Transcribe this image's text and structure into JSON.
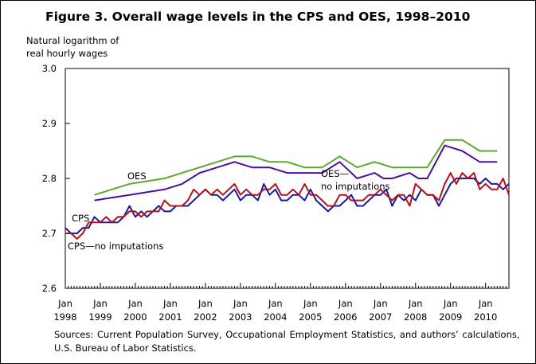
{
  "title": "Figure 3. Overall wage levels in the CPS and OES, 1998–2010",
  "ylabel_lines": [
    "Natural logarithm of",
    "real hourly wages"
  ],
  "source_lines": [
    "Sources: Current Population Survey, Occupational Employment Statistics, and authors’ calculations,",
    "U.S. Bureau of Labor Statistics."
  ],
  "colors": {
    "oes": "#5aaa2d",
    "oes_no_imputations": "#4b0fa0",
    "cps": "#1a1a9a",
    "cps_no_imputations": "#b3121c"
  },
  "chart_data": {
    "type": "line",
    "title": "Figure 3. Overall wage levels in the CPS and OES, 1998–2010",
    "ylabel": "Natural logarithm of real hourly wages",
    "xlabel": "",
    "ylim": [
      2.6,
      3.0
    ],
    "yticks": [
      {
        "value": 2.6,
        "label": "2.6"
      },
      {
        "value": 2.7,
        "label": "2.7"
      },
      {
        "value": 2.8,
        "label": "2.8"
      },
      {
        "value": 2.9,
        "label": "2.9"
      },
      {
        "value": 3.0,
        "label": "3.0"
      }
    ],
    "xlim": [
      "1998-01",
      "2010-09"
    ],
    "xticks": [
      {
        "t": "1998-01",
        "month": "Jan",
        "year": "1998"
      },
      {
        "t": "1999-01",
        "month": "Jan",
        "year": "1999"
      },
      {
        "t": "2000-01",
        "month": "Jan",
        "year": "2000"
      },
      {
        "t": "2001-01",
        "month": "Jan",
        "year": "2001"
      },
      {
        "t": "2002-01",
        "month": "Jan",
        "year": "2002"
      },
      {
        "t": "2003-01",
        "month": "Jan",
        "year": "2003"
      },
      {
        "t": "2004-01",
        "month": "Jan",
        "year": "2004"
      },
      {
        "t": "2005-01",
        "month": "Jan",
        "year": "2005"
      },
      {
        "t": "2006-01",
        "month": "Jan",
        "year": "2006"
      },
      {
        "t": "2007-01",
        "month": "Jan",
        "year": "2007"
      },
      {
        "t": "2008-01",
        "month": "Jan",
        "year": "2008"
      },
      {
        "t": "2009-01",
        "month": "Jan",
        "year": "2009"
      },
      {
        "t": "2010-01",
        "month": "Jan",
        "year": "2010"
      }
    ],
    "grid": false,
    "series": [
      {
        "name": "OES",
        "x": [
          "1998-11",
          "1999-05",
          "1999-11",
          "2000-05",
          "2000-11",
          "2001-05",
          "2001-11",
          "2002-05",
          "2002-11",
          "2003-05",
          "2003-11",
          "2004-05",
          "2004-11",
          "2005-05",
          "2005-11",
          "2006-05",
          "2006-11",
          "2007-05",
          "2007-11",
          "2008-05",
          "2008-11",
          "2009-05",
          "2009-11",
          "2010-05"
        ],
        "y": [
          2.77,
          2.78,
          2.79,
          2.795,
          2.8,
          2.81,
          2.82,
          2.83,
          2.84,
          2.84,
          2.83,
          2.83,
          2.82,
          2.82,
          2.84,
          2.82,
          2.83,
          2.82,
          2.82,
          2.82,
          2.87,
          2.87,
          2.85,
          2.85
        ]
      },
      {
        "name": "OES—no imputations",
        "x": [
          "1998-11",
          "1999-05",
          "1999-11",
          "2000-05",
          "2000-11",
          "2001-05",
          "2001-11",
          "2002-05",
          "2002-11",
          "2003-05",
          "2003-08",
          "2003-11",
          "2004-05",
          "2004-11",
          "2005-05",
          "2005-11",
          "2006-02",
          "2006-05",
          "2006-11",
          "2007-02",
          "2007-05",
          "2007-11",
          "2008-02",
          "2008-05",
          "2008-11",
          "2009-02",
          "2009-05",
          "2009-11",
          "2010-05"
        ],
        "y": [
          2.76,
          2.765,
          2.77,
          2.775,
          2.78,
          2.79,
          2.81,
          2.82,
          2.83,
          2.82,
          2.82,
          2.82,
          2.81,
          2.81,
          2.81,
          2.83,
          2.815,
          2.8,
          2.81,
          2.8,
          2.8,
          2.81,
          2.8,
          2.8,
          2.86,
          2.855,
          2.85,
          2.83,
          2.83
        ]
      },
      {
        "name": "CPS",
        "x": [
          "1998-01",
          "1998-03",
          "1998-05",
          "1998-07",
          "1998-09",
          "1998-11",
          "1999-01",
          "1999-03",
          "1999-05",
          "1999-07",
          "1999-09",
          "1999-11",
          "2000-01",
          "2000-03",
          "2000-05",
          "2000-07",
          "2000-09",
          "2000-11",
          "2001-01",
          "2001-03",
          "2001-05",
          "2001-07",
          "2001-09",
          "2001-11",
          "2002-01",
          "2002-03",
          "2002-05",
          "2002-07",
          "2002-09",
          "2002-11",
          "2003-01",
          "2003-03",
          "2003-05",
          "2003-07",
          "2003-09",
          "2003-11",
          "2004-01",
          "2004-03",
          "2004-05",
          "2004-07",
          "2004-09",
          "2004-11",
          "2005-01",
          "2005-03",
          "2005-05",
          "2005-07",
          "2005-09",
          "2005-11",
          "2006-01",
          "2006-03",
          "2006-05",
          "2006-07",
          "2006-09",
          "2006-11",
          "2007-01",
          "2007-03",
          "2007-05",
          "2007-07",
          "2007-09",
          "2007-11",
          "2008-01",
          "2008-03",
          "2008-05",
          "2008-07",
          "2008-09",
          "2008-11",
          "2009-01",
          "2009-03",
          "2009-05",
          "2009-07",
          "2009-09",
          "2009-11",
          "2010-01",
          "2010-03",
          "2010-05",
          "2010-07",
          "2010-09"
        ],
        "y": [
          2.71,
          2.7,
          2.7,
          2.71,
          2.71,
          2.73,
          2.72,
          2.72,
          2.72,
          2.72,
          2.73,
          2.75,
          2.73,
          2.74,
          2.73,
          2.74,
          2.75,
          2.74,
          2.74,
          2.75,
          2.75,
          2.75,
          2.76,
          2.77,
          2.78,
          2.77,
          2.77,
          2.76,
          2.77,
          2.78,
          2.76,
          2.77,
          2.77,
          2.76,
          2.79,
          2.77,
          2.78,
          2.76,
          2.76,
          2.77,
          2.77,
          2.76,
          2.78,
          2.76,
          2.75,
          2.74,
          2.75,
          2.75,
          2.76,
          2.77,
          2.75,
          2.75,
          2.76,
          2.77,
          2.77,
          2.78,
          2.75,
          2.77,
          2.76,
          2.77,
          2.76,
          2.78,
          2.77,
          2.77,
          2.75,
          2.77,
          2.79,
          2.8,
          2.8,
          2.8,
          2.8,
          2.79,
          2.8,
          2.79,
          2.79,
          2.78,
          2.79
        ]
      },
      {
        "name": "CPS—no imputations",
        "x": [
          "1998-01",
          "1998-03",
          "1998-05",
          "1998-07",
          "1998-09",
          "1998-11",
          "1999-01",
          "1999-03",
          "1999-05",
          "1999-07",
          "1999-09",
          "1999-11",
          "2000-01",
          "2000-03",
          "2000-05",
          "2000-07",
          "2000-09",
          "2000-11",
          "2001-01",
          "2001-03",
          "2001-05",
          "2001-07",
          "2001-09",
          "2001-11",
          "2002-01",
          "2002-03",
          "2002-05",
          "2002-07",
          "2002-09",
          "2002-11",
          "2003-01",
          "2003-03",
          "2003-05",
          "2003-07",
          "2003-09",
          "2003-11",
          "2004-01",
          "2004-03",
          "2004-05",
          "2004-07",
          "2004-09",
          "2004-11",
          "2005-01",
          "2005-03",
          "2005-05",
          "2005-07",
          "2005-09",
          "2005-11",
          "2006-01",
          "2006-03",
          "2006-05",
          "2006-07",
          "2006-09",
          "2006-11",
          "2007-01",
          "2007-03",
          "2007-05",
          "2007-07",
          "2007-09",
          "2007-11",
          "2008-01",
          "2008-03",
          "2008-05",
          "2008-07",
          "2008-09",
          "2008-11",
          "2009-01",
          "2009-03",
          "2009-05",
          "2009-07",
          "2009-09",
          "2009-11",
          "2010-01",
          "2010-03",
          "2010-05",
          "2010-07",
          "2010-09"
        ],
        "y": [
          2.7,
          2.7,
          2.69,
          2.7,
          2.72,
          2.72,
          2.72,
          2.73,
          2.72,
          2.73,
          2.73,
          2.74,
          2.74,
          2.73,
          2.74,
          2.74,
          2.74,
          2.76,
          2.75,
          2.75,
          2.75,
          2.76,
          2.78,
          2.77,
          2.78,
          2.77,
          2.78,
          2.77,
          2.78,
          2.79,
          2.77,
          2.78,
          2.77,
          2.77,
          2.78,
          2.78,
          2.79,
          2.77,
          2.77,
          2.78,
          2.77,
          2.79,
          2.77,
          2.77,
          2.76,
          2.75,
          2.75,
          2.77,
          2.77,
          2.76,
          2.76,
          2.76,
          2.77,
          2.77,
          2.78,
          2.77,
          2.76,
          2.77,
          2.77,
          2.75,
          2.79,
          2.78,
          2.77,
          2.77,
          2.76,
          2.79,
          2.81,
          2.79,
          2.81,
          2.8,
          2.81,
          2.78,
          2.79,
          2.78,
          2.78,
          2.8,
          2.77
        ]
      }
    ],
    "annotations": [
      {
        "text": "OES",
        "series": "OES"
      },
      {
        "text": "OES—",
        "series": "OES—no imputations"
      },
      {
        "text": "no imputations",
        "series": "OES—no imputations"
      },
      {
        "text": "CPS",
        "series": "CPS"
      },
      {
        "text": "CPS—no imputations",
        "series": "CPS—no imputations"
      }
    ]
  }
}
